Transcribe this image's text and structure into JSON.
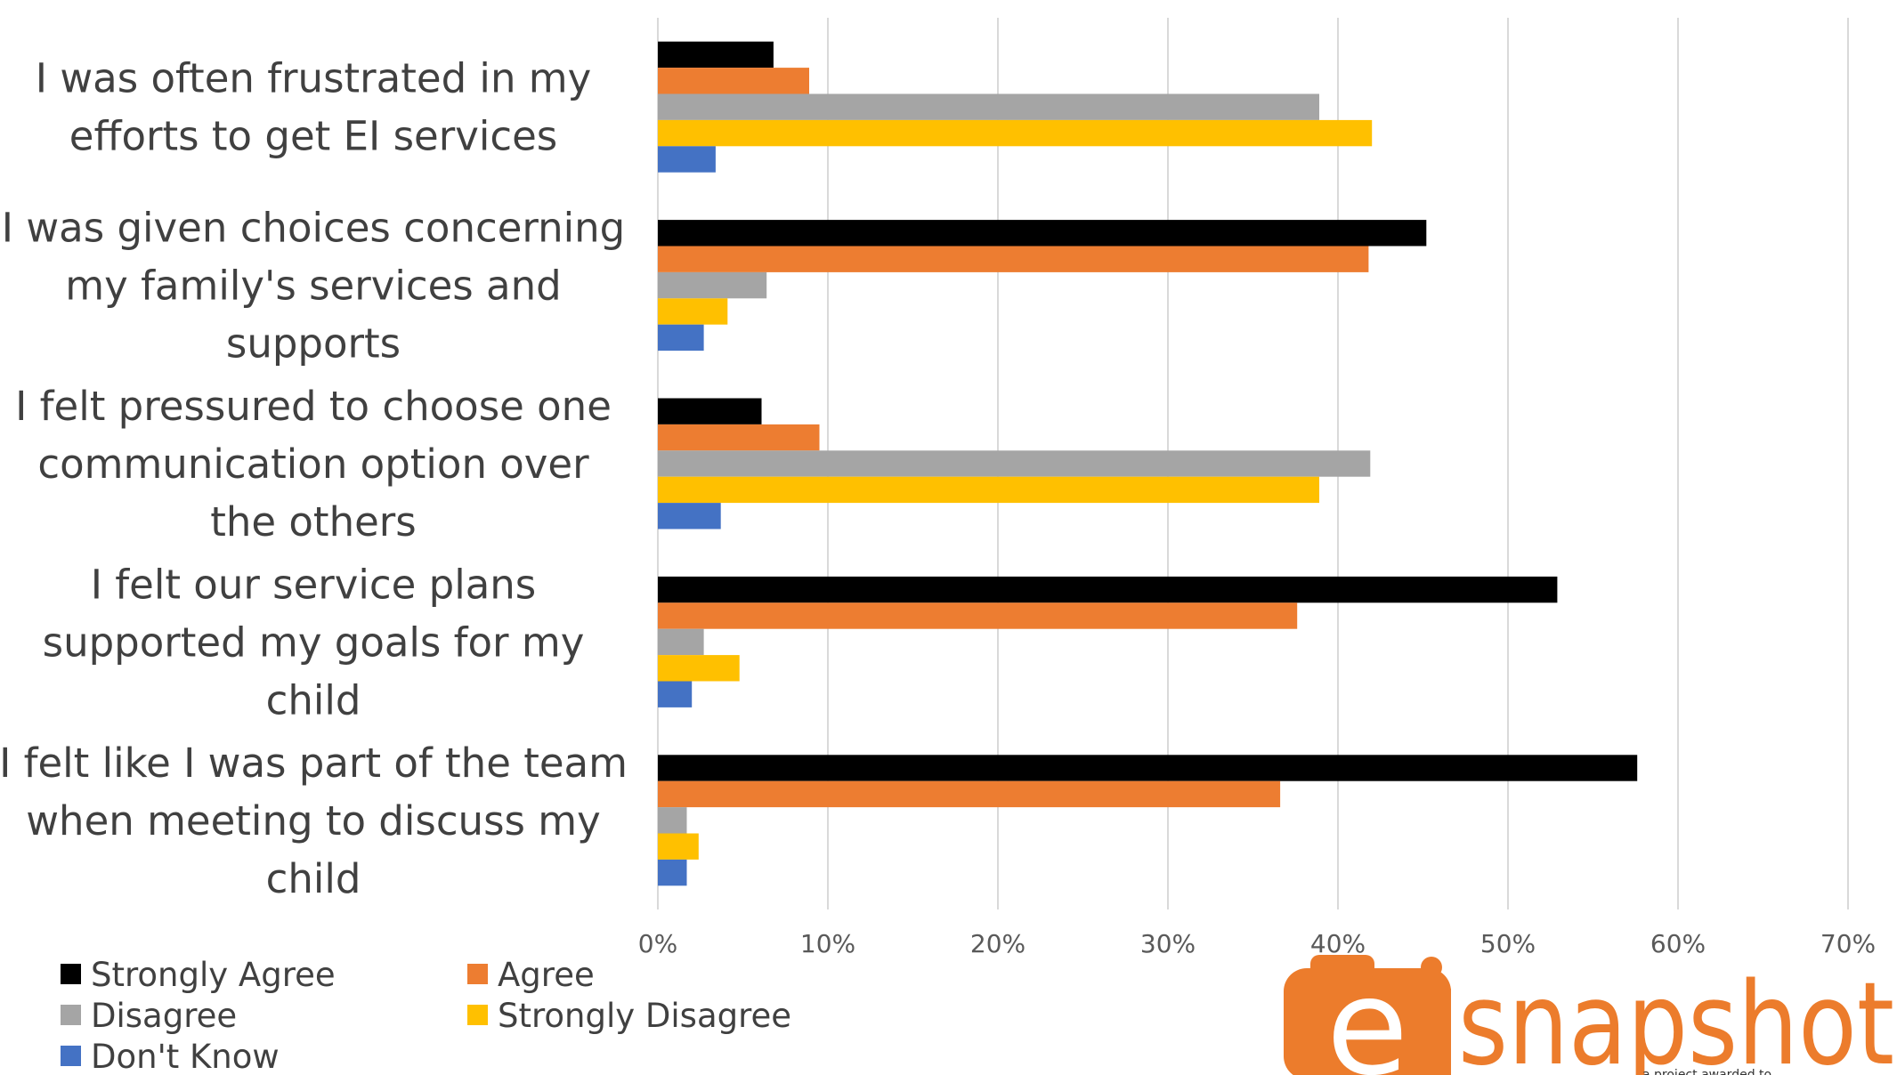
{
  "chart_data": {
    "type": "bar",
    "orientation": "horizontal",
    "categories": [
      [
        "I was often frustrated in my",
        "efforts to get EI services"
      ],
      [
        "I was given choices concerning",
        "my family's services and",
        "supports"
      ],
      [
        "I felt pressured to choose one",
        "communication option over",
        "the others"
      ],
      [
        "I felt our service plans",
        "supported my goals for my",
        "child"
      ],
      [
        "I felt like I was part of the team",
        "when meeting to discuss my",
        "child"
      ]
    ],
    "series": [
      {
        "name": "Strongly Agree",
        "color": "#000000",
        "values": [
          6.8,
          45.2,
          6.1,
          52.9,
          57.6
        ]
      },
      {
        "name": "Agree",
        "color": "#ed7d31",
        "values": [
          8.9,
          41.8,
          9.5,
          37.6,
          36.6
        ]
      },
      {
        "name": "Disagree",
        "color": "#a5a5a5",
        "values": [
          38.9,
          6.4,
          41.9,
          2.7,
          1.7
        ]
      },
      {
        "name": "Strongly Disagree",
        "color": "#ffc000",
        "values": [
          42.0,
          4.1,
          38.9,
          4.8,
          2.4
        ]
      },
      {
        "name": "Don't Know",
        "color": "#4472c4",
        "values": [
          3.4,
          2.7,
          3.7,
          2.0,
          1.7
        ]
      }
    ],
    "xlim": [
      0,
      70
    ],
    "ticks": [
      "0%",
      "10%",
      "20%",
      "30%",
      "40%",
      "50%",
      "60%",
      "70%"
    ],
    "title": "",
    "xlabel": "",
    "ylabel": "",
    "grid": "vertical",
    "legend_position": "bottom-left"
  },
  "logo": {
    "letter": "e",
    "word": "snapshot",
    "tagline": "a project awarded to",
    "color": "#ec7c2c"
  }
}
